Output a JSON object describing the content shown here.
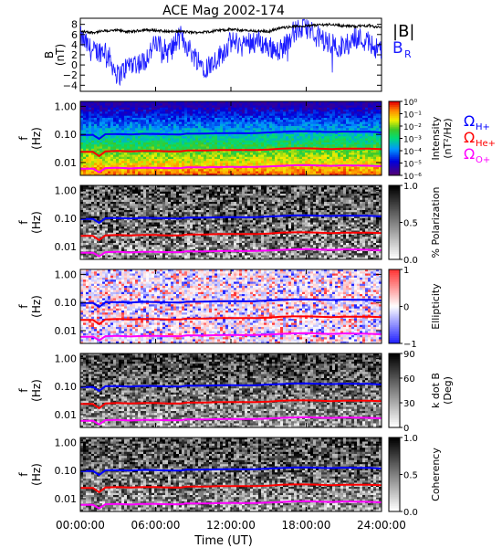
{
  "figure": {
    "title": "ACE Mag 2002-174"
  },
  "colors": {
    "total_field": "#000000",
    "radial_field": "#1a1aff",
    "proton_gyro": "#0000ff",
    "helium_gyro": "#ff0000",
    "oxygen_gyro": "#ff00ff"
  },
  "chart_data": [
    {
      "type": "line",
      "panel": "magnetic-field",
      "ylabel": "B\n(nT)",
      "yticks": [
        "8",
        "6",
        "4",
        "2",
        "0",
        "−2",
        "−4"
      ],
      "ylim": [
        -5.2,
        9.2
      ],
      "x_unit": "hours UT",
      "xlim": [
        0,
        24
      ],
      "legend": [
        "|B|",
        "B_R"
      ],
      "legend_text": {
        "total": "|B|",
        "radial_main": "B",
        "radial_sub": "R"
      },
      "legend_placement": "right",
      "series": [
        {
          "name": "|B|",
          "x": [
            0,
            1,
            2,
            3,
            4,
            5,
            6,
            7,
            8,
            9,
            10,
            11,
            12,
            13,
            14,
            15,
            16,
            17,
            18,
            19,
            20,
            21,
            22,
            23,
            24
          ],
          "values": [
            6.6,
            6.4,
            6.7,
            6.8,
            6.5,
            6.9,
            6.8,
            6.6,
            6.6,
            6.4,
            6.5,
            6.8,
            7.0,
            6.8,
            6.7,
            6.6,
            7.3,
            7.6,
            7.7,
            7.9,
            8.0,
            7.7,
            7.6,
            7.8,
            7.3
          ]
        },
        {
          "name": "B_R",
          "x": [
            0,
            1,
            2,
            3,
            4,
            5,
            6,
            7,
            8,
            9,
            10,
            11,
            12,
            13,
            14,
            15,
            16,
            17,
            18,
            19,
            20,
            21,
            22,
            23,
            24
          ],
          "values": [
            5.5,
            2.5,
            3.0,
            -2.2,
            0.4,
            0.5,
            4.2,
            2.5,
            5.6,
            2.0,
            -0.5,
            1.5,
            4.5,
            4.2,
            5.0,
            3.5,
            3.0,
            6.5,
            7.5,
            5.5,
            4.0,
            3.5,
            5.5,
            4.5,
            2.5
          ]
        }
      ]
    },
    {
      "type": "heatmap",
      "panel": "power-spectrum",
      "ylabel": "f\n(Hz)",
      "yticks": [
        "1.00",
        "0.10",
        "0.01"
      ],
      "colorbar_label": "Intensity\n(nT²/Hz)",
      "colorbar_ticks": [
        "10⁰",
        "10⁻¹",
        "10⁻²",
        "10⁻³",
        "10⁻⁴",
        "10⁻⁵",
        "10⁻⁶"
      ],
      "colormap": "rainbow",
      "legend_text": [
        "Ω",
        "H+",
        "Ω",
        "He+",
        "Ω",
        "O+"
      ]
    },
    {
      "type": "heatmap",
      "panel": "polarization",
      "ylabel": "f\n(Hz)",
      "yticks": [
        "1.00",
        "0.10",
        "0.01"
      ],
      "colorbar_label": "% Polarization",
      "colorbar_ticks": [
        "1.0",
        "0.5",
        "0.0"
      ],
      "colormap": "grayscale"
    },
    {
      "type": "heatmap",
      "panel": "ellipticity",
      "ylabel": "f\n(Hz)",
      "yticks": [
        "1.00",
        "0.10",
        "0.01"
      ],
      "colorbar_label": "Ellipticity",
      "colorbar_ticks": [
        "1",
        "0",
        "−1"
      ],
      "colormap": "blue-white-red"
    },
    {
      "type": "heatmap",
      "panel": "wave-normal-angle",
      "ylabel": "f\n(Hz)",
      "yticks": [
        "1.00",
        "0.10",
        "0.01"
      ],
      "colorbar_label": "k dot B\n(Deg)",
      "colorbar_ticks": [
        "90",
        "60",
        "30",
        "0"
      ],
      "colormap": "grayscale"
    },
    {
      "type": "heatmap",
      "panel": "coherency",
      "ylabel": "f\n(Hz)",
      "yticks": [
        "1.00",
        "0.10",
        "0.01"
      ],
      "colorbar_label": "Coherency",
      "colorbar_ticks": [
        "1.0",
        "0.5",
        "0.0"
      ],
      "colormap": "grayscale"
    }
  ],
  "gyrofrequency_lines": {
    "x": [
      0,
      1,
      1.5,
      2,
      3,
      4,
      5,
      6,
      7,
      8,
      8.5,
      9,
      10,
      11,
      12,
      13,
      14,
      15,
      16,
      17,
      18,
      19,
      20,
      21,
      22,
      23,
      24
    ],
    "H+": [
      0.095,
      0.097,
      0.07,
      0.102,
      0.103,
      0.1,
      0.105,
      0.104,
      0.101,
      0.1,
      0.108,
      0.106,
      0.107,
      0.11,
      0.112,
      0.11,
      0.111,
      0.118,
      0.122,
      0.128,
      0.13,
      0.125,
      0.122,
      0.126,
      0.125,
      0.124,
      0.118
    ],
    "He+": [
      0.024,
      0.024,
      0.017,
      0.025,
      0.026,
      0.025,
      0.026,
      0.026,
      0.025,
      0.025,
      0.027,
      0.027,
      0.027,
      0.028,
      0.028,
      0.028,
      0.028,
      0.029,
      0.031,
      0.032,
      0.032,
      0.031,
      0.03,
      0.031,
      0.031,
      0.031,
      0.03
    ],
    "O+": [
      0.006,
      0.0061,
      0.0045,
      0.0063,
      0.0065,
      0.0062,
      0.0065,
      0.0065,
      0.0063,
      0.0063,
      0.0068,
      0.0067,
      0.0067,
      0.0069,
      0.007,
      0.0069,
      0.007,
      0.0073,
      0.0076,
      0.008,
      0.0081,
      0.0078,
      0.0076,
      0.0079,
      0.0078,
      0.0077,
      0.0074
    ]
  },
  "x_axis": {
    "label": "Time (UT)",
    "ticks": [
      "00:00:00",
      "06:00:00",
      "12:00:00",
      "18:00:00",
      "24:00:00"
    ]
  }
}
